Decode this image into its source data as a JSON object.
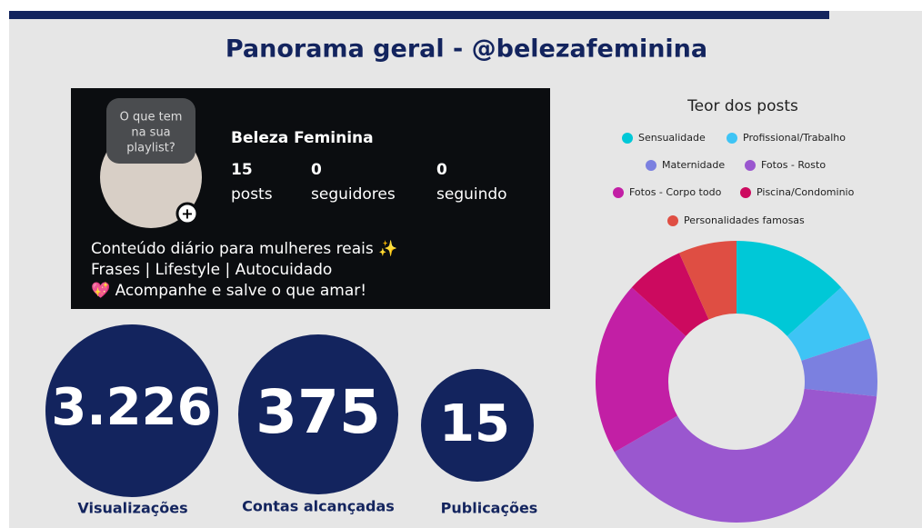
{
  "header": {
    "title": "Panorama geral - @belezafeminina"
  },
  "profile": {
    "bubble": [
      "O que tem",
      "na sua",
      "playlist?"
    ],
    "name": "Beleza Feminina",
    "stats": [
      {
        "number": "15",
        "label": "posts"
      },
      {
        "number": "0",
        "label": "seguidores"
      },
      {
        "number": "0",
        "label": "seguindo"
      }
    ],
    "bio": [
      "Conteúdo diário para mulheres reais ✨",
      "Frases | Lifestyle | Autocuidado",
      "💖 Acompanhe e salve o que amar!"
    ]
  },
  "metrics": [
    {
      "value": "3.226",
      "label": "Visualizações"
    },
    {
      "value": "375",
      "label": "Contas alcançadas"
    },
    {
      "value": "15",
      "label": "Publicações"
    }
  ],
  "chart_data": {
    "type": "pie",
    "title": "Teor dos posts",
    "categories": [
      "Sensualidade",
      "Profissional/Trabalho",
      "Maternidade",
      "Fotos - Rosto",
      "Fotos - Corpo todo",
      "Piscina/Condominio",
      "Personalidades famosas"
    ],
    "values": [
      2,
      1,
      1,
      6,
      3,
      1,
      1
    ],
    "colors": [
      "#00c8d7",
      "#3ec4f5",
      "#7b80e0",
      "#9a57cf",
      "#c21fa5",
      "#cc0a5f",
      "#df4e43"
    ],
    "legend": "top",
    "donut": true
  }
}
